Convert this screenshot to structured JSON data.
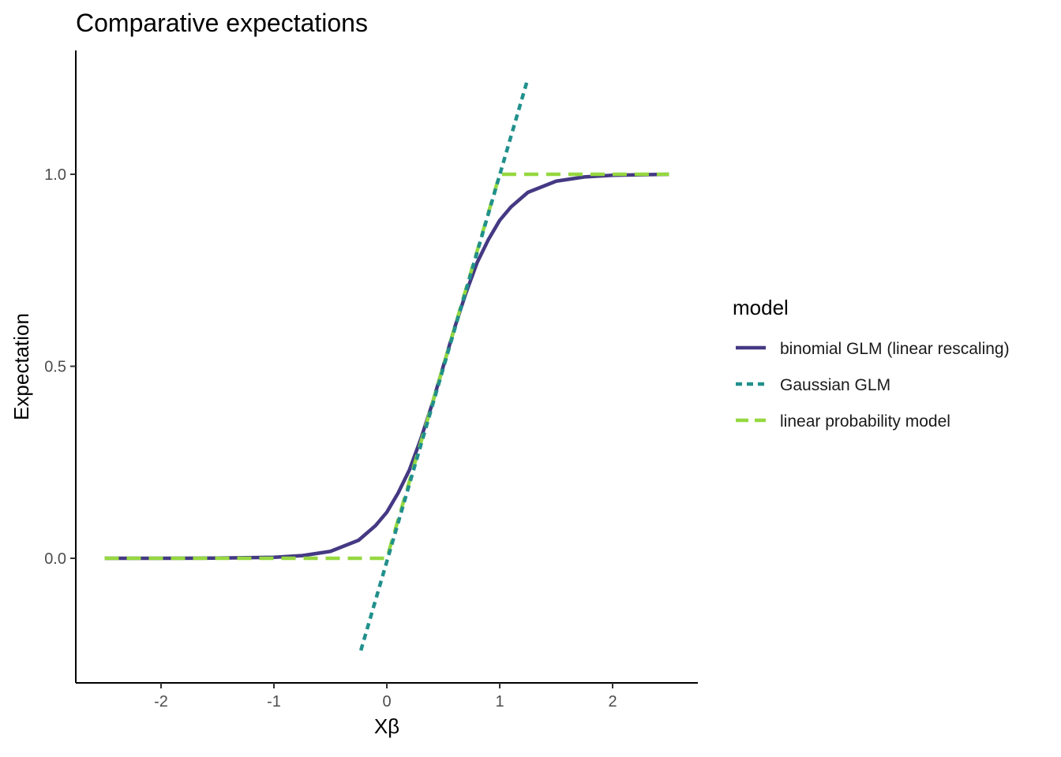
{
  "chart_data": {
    "type": "line",
    "title": "Comparative expectations",
    "xlabel": "Xβ",
    "ylabel": "Expectation",
    "xlim": [
      -2.75,
      2.75
    ],
    "ylim": [
      -0.32,
      1.32
    ],
    "x_ticks": [
      -2,
      -1,
      0,
      1,
      2
    ],
    "x_tick_labels": [
      "-2",
      "-1",
      "0",
      "1",
      "2"
    ],
    "y_ticks": [
      0.0,
      0.5,
      1.0
    ],
    "y_tick_labels": [
      "0.0",
      "0.5",
      "1.0"
    ],
    "grid": false,
    "legend": {
      "title": "model",
      "position": "right"
    },
    "series": [
      {
        "name": "binomial GLM (linear rescaling)",
        "color": "#443983",
        "linestyle": "solid",
        "x": [
          -2.5,
          -2.0,
          -1.5,
          -1.0,
          -0.75,
          -0.5,
          -0.25,
          -0.1,
          0.0,
          0.1,
          0.2,
          0.3,
          0.4,
          0.5,
          0.6,
          0.7,
          0.8,
          0.9,
          1.0,
          1.1,
          1.25,
          1.5,
          1.75,
          2.0,
          2.5
        ],
        "y": [
          0.0,
          0.0,
          0.0004,
          0.0025,
          0.007,
          0.018,
          0.047,
          0.085,
          0.12,
          0.17,
          0.23,
          0.31,
          0.4,
          0.5,
          0.6,
          0.69,
          0.77,
          0.83,
          0.88,
          0.915,
          0.953,
          0.982,
          0.993,
          0.9975,
          1.0
        ]
      },
      {
        "name": "Gaussian GLM",
        "color": "#21908C",
        "linestyle": "dotted",
        "x": [
          -0.23,
          1.25
        ],
        "y": [
          -0.24,
          1.25
        ]
      },
      {
        "name": "linear probability model",
        "color": "#95D840",
        "linestyle": "dashed",
        "x": [
          -2.5,
          0.0,
          1.0,
          2.5
        ],
        "y": [
          0.0,
          0.0,
          1.0,
          1.0
        ]
      }
    ]
  }
}
